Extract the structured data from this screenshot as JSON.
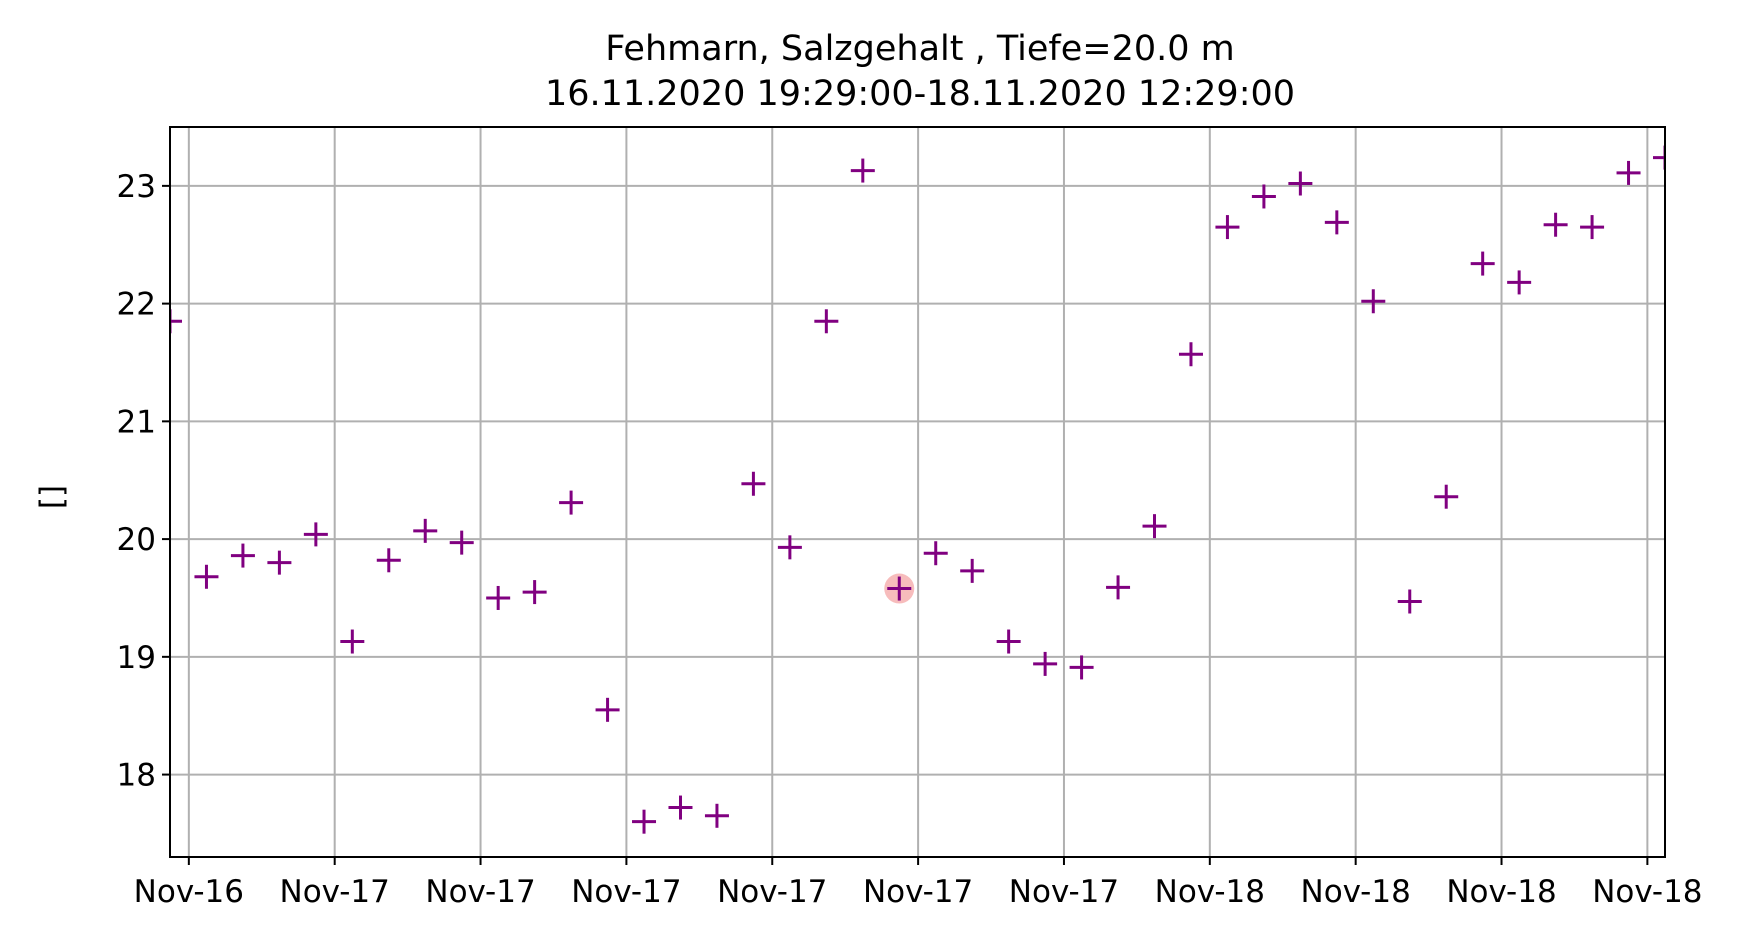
{
  "chart_data": {
    "type": "scatter",
    "title": "Fehmarn, Salzgehalt , Tiefe=20.0 m",
    "subtitle": "16.11.2020 19:29:00-18.11.2020 12:29:00",
    "xlabel": "",
    "ylabel": "[]",
    "xlim": [
      "2020-11-16T19:29:00",
      "2020-11-18T12:29:00"
    ],
    "ylim": [
      17.3,
      23.5
    ],
    "grid": true,
    "marker": "plus",
    "marker_color": "#800080",
    "highlight_color": "#f4a6a6",
    "x_ticks": [
      {
        "time": "2020-11-16T20:00:00",
        "label": "Nov-16"
      },
      {
        "time": "2020-11-17T00:00:00",
        "label": "Nov-17"
      },
      {
        "time": "2020-11-17T04:00:00",
        "label": "Nov-17"
      },
      {
        "time": "2020-11-17T08:00:00",
        "label": "Nov-17"
      },
      {
        "time": "2020-11-17T12:00:00",
        "label": "Nov-17"
      },
      {
        "time": "2020-11-17T16:00:00",
        "label": "Nov-17"
      },
      {
        "time": "2020-11-17T20:00:00",
        "label": "Nov-17"
      },
      {
        "time": "2020-11-18T00:00:00",
        "label": "Nov-18"
      },
      {
        "time": "2020-11-18T04:00:00",
        "label": "Nov-18"
      },
      {
        "time": "2020-11-18T08:00:00",
        "label": "Nov-18"
      },
      {
        "time": "2020-11-18T12:00:00",
        "label": "Nov-18"
      }
    ],
    "y_ticks": [
      {
        "value": 18,
        "label": "18"
      },
      {
        "value": 19,
        "label": "19"
      },
      {
        "value": 20,
        "label": "20"
      },
      {
        "value": 21,
        "label": "21"
      },
      {
        "value": 22,
        "label": "22"
      },
      {
        "value": 23,
        "label": "23"
      }
    ],
    "series": [
      {
        "points": [
          {
            "time": "2020-11-16T19:29:00",
            "value": 21.85
          },
          {
            "time": "2020-11-16T20:29:00",
            "value": 19.68
          },
          {
            "time": "2020-11-16T21:29:00",
            "value": 19.86
          },
          {
            "time": "2020-11-16T22:29:00",
            "value": 19.8
          },
          {
            "time": "2020-11-16T23:29:00",
            "value": 20.04
          },
          {
            "time": "2020-11-17T00:29:00",
            "value": 19.13
          },
          {
            "time": "2020-11-17T01:29:00",
            "value": 19.82
          },
          {
            "time": "2020-11-17T02:29:00",
            "value": 20.07
          },
          {
            "time": "2020-11-17T03:29:00",
            "value": 19.97
          },
          {
            "time": "2020-11-17T04:29:00",
            "value": 19.5
          },
          {
            "time": "2020-11-17T05:29:00",
            "value": 19.55
          },
          {
            "time": "2020-11-17T06:29:00",
            "value": 20.31
          },
          {
            "time": "2020-11-17T07:29:00",
            "value": 18.55
          },
          {
            "time": "2020-11-17T08:29:00",
            "value": 17.6
          },
          {
            "time": "2020-11-17T09:29:00",
            "value": 17.72
          },
          {
            "time": "2020-11-17T10:29:00",
            "value": 17.65
          },
          {
            "time": "2020-11-17T11:29:00",
            "value": 20.47
          },
          {
            "time": "2020-11-17T12:29:00",
            "value": 19.93
          },
          {
            "time": "2020-11-17T13:29:00",
            "value": 21.85
          },
          {
            "time": "2020-11-17T14:29:00",
            "value": 23.13
          },
          {
            "time": "2020-11-17T15:29:00",
            "value": 19.58,
            "highlight": true
          },
          {
            "time": "2020-11-17T16:29:00",
            "value": 19.88
          },
          {
            "time": "2020-11-17T17:29:00",
            "value": 19.73
          },
          {
            "time": "2020-11-17T18:29:00",
            "value": 19.13
          },
          {
            "time": "2020-11-17T19:29:00",
            "value": 18.94
          },
          {
            "time": "2020-11-17T20:29:00",
            "value": 18.91
          },
          {
            "time": "2020-11-17T21:29:00",
            "value": 19.59
          },
          {
            "time": "2020-11-17T22:29:00",
            "value": 20.11
          },
          {
            "time": "2020-11-17T23:29:00",
            "value": 21.57
          },
          {
            "time": "2020-11-18T00:29:00",
            "value": 22.65
          },
          {
            "time": "2020-11-18T01:29:00",
            "value": 22.91
          },
          {
            "time": "2020-11-18T02:29:00",
            "value": 23.02
          },
          {
            "time": "2020-11-18T03:29:00",
            "value": 22.69
          },
          {
            "time": "2020-11-18T04:29:00",
            "value": 22.02
          },
          {
            "time": "2020-11-18T05:29:00",
            "value": 19.47
          },
          {
            "time": "2020-11-18T06:29:00",
            "value": 20.36
          },
          {
            "time": "2020-11-18T07:29:00",
            "value": 22.34
          },
          {
            "time": "2020-11-18T08:29:00",
            "value": 22.18
          },
          {
            "time": "2020-11-18T09:29:00",
            "value": 22.67
          },
          {
            "time": "2020-11-18T10:29:00",
            "value": 22.65
          },
          {
            "time": "2020-11-18T11:29:00",
            "value": 23.11
          },
          {
            "time": "2020-11-18T12:29:00",
            "value": 23.24
          }
        ]
      }
    ]
  }
}
